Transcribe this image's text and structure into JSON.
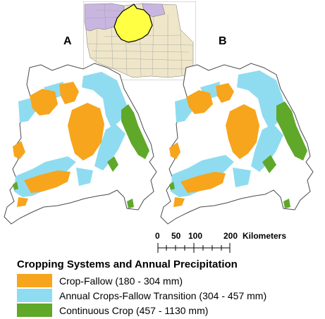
{
  "panels": [
    {
      "label": "A"
    },
    {
      "label": "B"
    }
  ],
  "scale_bar": {
    "ticks": [
      "0",
      "50",
      "100",
      "200"
    ],
    "unit": "Kilometers"
  },
  "legend": {
    "title": "Cropping Systems and Annual Precipitation",
    "items": [
      {
        "label": "Crop-Fallow (180 - 304 mm)",
        "color": "#f7a51c"
      },
      {
        "label": "Annual Crops-Fallow Transition (304 - 457 mm)",
        "color": "#8fdcf0"
      },
      {
        "label": "Continuous Crop (457 - 1130 mm)",
        "color": "#5fa82a"
      }
    ]
  },
  "colors": {
    "inset_west": "#c9b6e0",
    "inset_east": "#efe6c9",
    "inset_highlight": "#ffff44",
    "outline": "#4a4a4a"
  }
}
